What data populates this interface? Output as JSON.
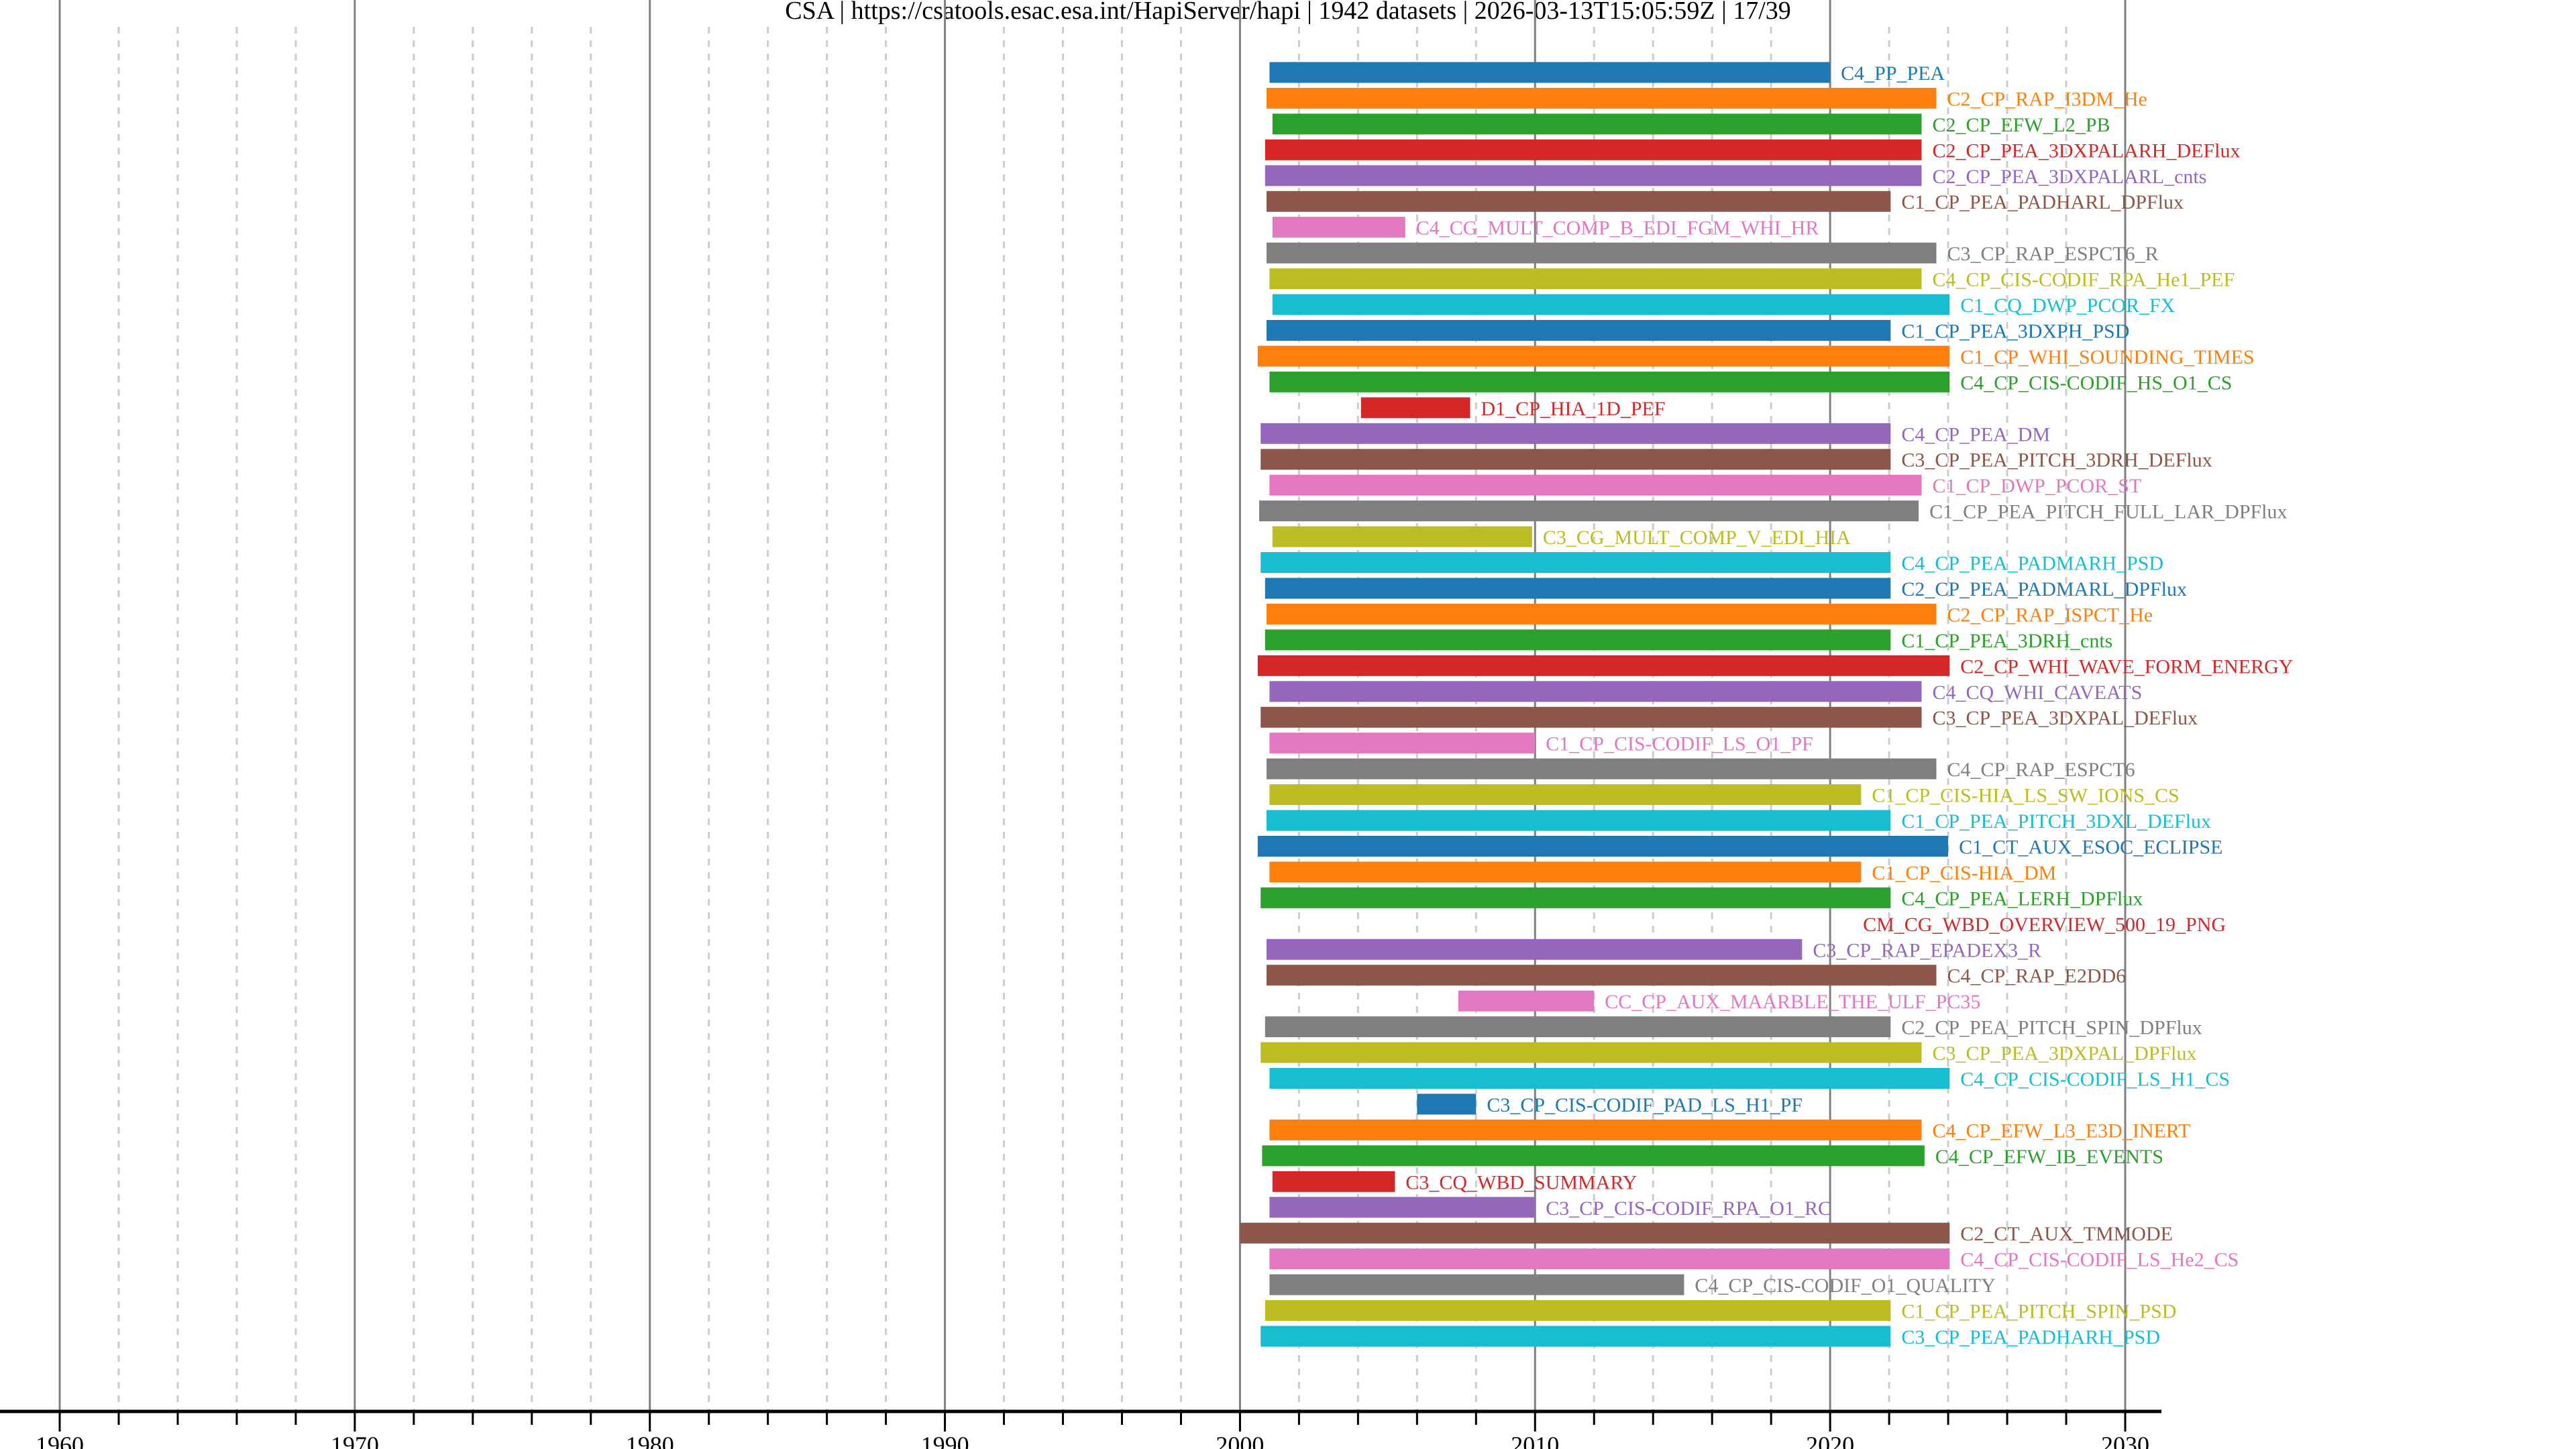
{
  "chart_data": {
    "type": "bar",
    "orientation": "horizontal-range",
    "title": "CSA | https://csatools.esac.esa.int/HapiServer/hapi | 1942 datasets | 2026-03-13T15:05:59Z | 17/39",
    "xlabel": "",
    "ylabel": "",
    "xlim": [
      1960,
      2030
    ],
    "xticks": [
      "1960",
      "1970",
      "1980",
      "1990",
      "2000",
      "2010",
      "2020",
      "2030"
    ],
    "minor_tick_step_years": 2,
    "grid": "major solid, minor dashed (vertical)",
    "palette": [
      "#1f77b4",
      "#ff7f0e",
      "#2ca02c",
      "#d62728",
      "#9467bd",
      "#8c564b",
      "#e377c2",
      "#7f7f7f",
      "#bcbd22",
      "#17becf"
    ],
    "series": [
      {
        "name": "C4_PP_PEA",
        "start": 2001.0,
        "stop": 2020.0
      },
      {
        "name": "C2_CP_RAP_I3DM_He",
        "start": 2000.9,
        "stop": 2023.6
      },
      {
        "name": "C2_CP_EFW_L2_PB",
        "start": 2001.1,
        "stop": 2023.1
      },
      {
        "name": "C2_CP_PEA_3DXPALARH_DEFlux",
        "start": 2000.85,
        "stop": 2023.1
      },
      {
        "name": "C2_CP_PEA_3DXPALARL_cnts",
        "start": 2000.85,
        "stop": 2023.1
      },
      {
        "name": "C1_CP_PEA_PADHARL_DPFlux",
        "start": 2000.9,
        "stop": 2022.05
      },
      {
        "name": "C4_CG_MULT_COMP_B_EDI_FGM_WHI_HR",
        "start": 2001.1,
        "stop": 2005.6
      },
      {
        "name": "C3_CP_RAP_ESPCT6_R",
        "start": 2000.9,
        "stop": 2023.6
      },
      {
        "name": "C4_CP_CIS-CODIF_RPA_He1_PEF",
        "start": 2001.0,
        "stop": 2023.1
      },
      {
        "name": "C1_CQ_DWP_PCOR_FX",
        "start": 2001.1,
        "stop": 2024.05
      },
      {
        "name": "C1_CP_PEA_3DXPH_PSD",
        "start": 2000.9,
        "stop": 2022.05
      },
      {
        "name": "C1_CP_WHI_SOUNDING_TIMES",
        "start": 2000.6,
        "stop": 2024.05
      },
      {
        "name": "C4_CP_CIS-CODIF_HS_O1_CS",
        "start": 2001.0,
        "stop": 2024.05
      },
      {
        "name": "D1_CP_HIA_1D_PEF",
        "start": 2004.1,
        "stop": 2007.8
      },
      {
        "name": "C4_CP_PEA_DM",
        "start": 2000.7,
        "stop": 2022.05
      },
      {
        "name": "C3_CP_PEA_PITCH_3DRH_DEFlux",
        "start": 2000.7,
        "stop": 2022.05
      },
      {
        "name": "C1_CP_DWP_PCOR_ST",
        "start": 2001.0,
        "stop": 2023.1
      },
      {
        "name": "C1_CP_PEA_PITCH_FULL_LAR_DPFlux",
        "start": 2000.65,
        "stop": 2023.0
      },
      {
        "name": "C3_CG_MULT_COMP_V_EDI_HIA",
        "start": 2001.1,
        "stop": 2009.9
      },
      {
        "name": "C4_CP_PEA_PADMARH_PSD",
        "start": 2000.7,
        "stop": 2022.05
      },
      {
        "name": "C2_CP_PEA_PADMARL_DPFlux",
        "start": 2000.85,
        "stop": 2022.05
      },
      {
        "name": "C2_CP_RAP_ISPCT_He",
        "start": 2000.9,
        "stop": 2023.6
      },
      {
        "name": "C1_CP_PEA_3DRH_cnts",
        "start": 2000.85,
        "stop": 2022.05
      },
      {
        "name": "C2_CP_WHI_WAVE_FORM_ENERGY",
        "start": 2000.6,
        "stop": 2024.05
      },
      {
        "name": "C4_CQ_WHI_CAVEATS",
        "start": 2001.0,
        "stop": 2023.1
      },
      {
        "name": "C3_CP_PEA_3DXPAL_DEFlux",
        "start": 2000.7,
        "stop": 2023.1
      },
      {
        "name": "C1_CP_CIS-CODIF_LS_O1_PF",
        "start": 2001.0,
        "stop": 2010.0
      },
      {
        "name": "C4_CP_RAP_ESPCT6",
        "start": 2000.9,
        "stop": 2023.6
      },
      {
        "name": "C1_CP_CIS-HIA_LS_SW_IONS_CS",
        "start": 2001.0,
        "stop": 2021.05
      },
      {
        "name": "C1_CP_PEA_PITCH_3DXL_DEFlux",
        "start": 2000.9,
        "stop": 2022.05
      },
      {
        "name": "C1_CT_AUX_ESOC_ECLIPSE",
        "start": 2000.6,
        "stop": 2024.0
      },
      {
        "name": "C1_CP_CIS-HIA_DM",
        "start": 2001.0,
        "stop": 2021.05
      },
      {
        "name": "C4_CP_PEA_LERH_DPFlux",
        "start": 2000.7,
        "stop": 2022.05
      },
      {
        "name": "CM_CG_WBD_OVERVIEW_500_19_PNG",
        "start": 2020.75,
        "stop": 2020.75
      },
      {
        "name": "C3_CP_RAP_EPADEX3_R",
        "start": 2000.9,
        "stop": 2019.05
      },
      {
        "name": "C4_CP_RAP_E2DD6",
        "start": 2000.9,
        "stop": 2023.6
      },
      {
        "name": "CC_CP_AUX_MAARBLE_THE_ULF_PC35",
        "start": 2007.4,
        "stop": 2012.0
      },
      {
        "name": "C2_CP_PEA_PITCH_SPIN_DPFlux",
        "start": 2000.85,
        "stop": 2022.05
      },
      {
        "name": "C3_CP_PEA_3DXPAL_DPFlux",
        "start": 2000.7,
        "stop": 2023.1
      },
      {
        "name": "C4_CP_CIS-CODIF_LS_H1_CS",
        "start": 2001.0,
        "stop": 2024.05
      },
      {
        "name": "C3_CP_CIS-CODIF_PAD_LS_H1_PF",
        "start": 2006.0,
        "stop": 2008.0
      },
      {
        "name": "C4_CP_EFW_L3_E3D_INERT",
        "start": 2001.0,
        "stop": 2023.1
      },
      {
        "name": "C4_CP_EFW_IB_EVENTS",
        "start": 2000.75,
        "stop": 2023.2
      },
      {
        "name": "C3_CQ_WBD_SUMMARY",
        "start": 2001.1,
        "stop": 2005.25
      },
      {
        "name": "C3_CP_CIS-CODIF_RPA_O1_RC",
        "start": 2001.0,
        "stop": 2010.0
      },
      {
        "name": "C2_CT_AUX_TMMODE",
        "start": 2000.0,
        "stop": 2024.05
      },
      {
        "name": "C4_CP_CIS-CODIF_LS_He2_CS",
        "start": 2001.0,
        "stop": 2024.05
      },
      {
        "name": "C4_CP_CIS-CODIF_O1_QUALITY",
        "start": 2001.0,
        "stop": 2015.05
      },
      {
        "name": "C1_CP_PEA_PITCH_SPIN_PSD",
        "start": 2000.85,
        "stop": 2022.05
      },
      {
        "name": "C3_CP_PEA_PADHARH_PSD",
        "start": 2000.7,
        "stop": 2022.05
      }
    ]
  }
}
